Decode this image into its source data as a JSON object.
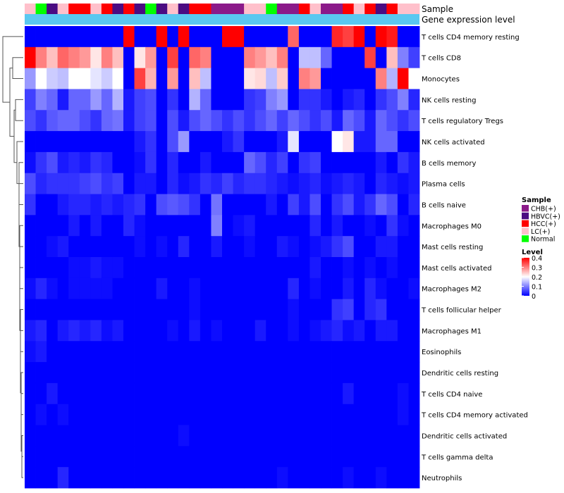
{
  "chart_data": {
    "type": "heatmap",
    "title": "",
    "annotation_tracks": [
      {
        "name": "Sample",
        "label": "Sample"
      },
      {
        "name": "Gene expression level",
        "label": "Gene expression level"
      }
    ],
    "gene_expression_level_color": "#5ac8f0",
    "rows": [
      "T cells CD4 memory resting",
      "T cells CD8",
      "Monocytes",
      "NK cells resting",
      "T cells regulatory  Tregs",
      "NK cells activated",
      "B cells memory",
      "Plasma cells",
      "B cells naive",
      "Macrophages M0",
      "Mast cells resting",
      "Mast cells activated",
      "Macrophages M2",
      "T cells follicular helper",
      "Macrophages M1",
      "Eosinophils",
      "Dendritic cells resting",
      "T cells CD4 naive",
      "T cells CD4 memory activated",
      "Dendritic cells activated",
      "T cells gamma delta",
      "Neutrophils"
    ],
    "sample_groups": [
      "LC",
      "Normal",
      "HBVC",
      "LC",
      "HCC",
      "HCC",
      "LC",
      "HCC",
      "HBVC",
      "HCC",
      "HBVC",
      "Normal",
      "HBVC",
      "LC",
      "HBVC",
      "HCC",
      "HCC",
      "CHB",
      "CHB",
      "CHB",
      "LC",
      "LC",
      "Normal",
      "CHB",
      "CHB",
      "HCC",
      "LC",
      "CHB",
      "CHB",
      "HCC",
      "LC",
      "HCC",
      "HBVC",
      "HCC",
      "LC",
      "LC"
    ],
    "values": [
      [
        0,
        0,
        0,
        0,
        0,
        0,
        0,
        0,
        0,
        0.4,
        0,
        0,
        0.4,
        0,
        0.4,
        0,
        0,
        0,
        0.4,
        0.4,
        0,
        0,
        0,
        0,
        0.32,
        0,
        0,
        0,
        0.37,
        0.35,
        0.4,
        0,
        0.4,
        0.38,
        0,
        0
      ],
      [
        0.4,
        0.3,
        0.25,
        0.32,
        0.3,
        0.28,
        0.22,
        0.3,
        0.25,
        0,
        0.22,
        0.28,
        0,
        0.35,
        0,
        0.32,
        0.3,
        0,
        0,
        0,
        0.3,
        0.28,
        0.25,
        0.3,
        0,
        0.15,
        0.15,
        0.08,
        0,
        0,
        0,
        0.35,
        0,
        0.25,
        0.1,
        0.05
      ],
      [
        0.12,
        0.2,
        0.16,
        0.15,
        0.2,
        0.2,
        0.18,
        0.16,
        0.2,
        0,
        0.35,
        0.26,
        0,
        0.28,
        0,
        0.25,
        0.15,
        0,
        0,
        0,
        0.22,
        0.23,
        0.15,
        0.24,
        0,
        0.3,
        0.28,
        0,
        0,
        0,
        0,
        0,
        0.3,
        0.14,
        0.4,
        0.2
      ],
      [
        0.05,
        0.1,
        0.08,
        0.02,
        0.08,
        0.08,
        0.12,
        0.08,
        0.14,
        0.02,
        0.05,
        0.06,
        0,
        0.04,
        0,
        0.14,
        0.08,
        0,
        0,
        0,
        0.04,
        0.05,
        0.1,
        0.12,
        0,
        0.04,
        0.04,
        0.02,
        0,
        0.02,
        0.03,
        0,
        0.04,
        0.06,
        0.1,
        0.03
      ],
      [
        0.06,
        0.04,
        0.07,
        0.08,
        0.08,
        0.06,
        0.04,
        0.08,
        0.09,
        0.02,
        0.05,
        0.06,
        0,
        0.06,
        0.02,
        0.06,
        0.08,
        0.06,
        0.04,
        0.06,
        0.04,
        0.06,
        0.08,
        0.05,
        0.08,
        0.06,
        0.04,
        0.06,
        0.02,
        0.08,
        0.06,
        0.02,
        0.08,
        0.06,
        0.04,
        0.06
      ],
      [
        0,
        0,
        0,
        0,
        0,
        0,
        0,
        0,
        0,
        0,
        0.02,
        0.04,
        0,
        0.06,
        0.12,
        0,
        0,
        0,
        0.02,
        0.04,
        0,
        0,
        0,
        0.02,
        0.18,
        0,
        0,
        0,
        0.2,
        0.22,
        0.02,
        0.02,
        0.08,
        0.08,
        0,
        0
      ],
      [
        0.01,
        0.04,
        0.06,
        0.02,
        0.03,
        0.02,
        0.04,
        0.03,
        0,
        0,
        0.01,
        0.04,
        0,
        0.03,
        0,
        0,
        0.02,
        0,
        0,
        0,
        0.08,
        0.06,
        0.03,
        0.05,
        0,
        0.04,
        0.05,
        0,
        0,
        0,
        0,
        0,
        0.02,
        0,
        0.04,
        0.02
      ],
      [
        0.06,
        0.03,
        0.04,
        0.04,
        0.04,
        0.05,
        0.06,
        0.04,
        0.05,
        0,
        0.02,
        0.02,
        0,
        0.03,
        0.01,
        0.02,
        0.04,
        0.03,
        0.05,
        0.03,
        0.04,
        0.04,
        0.03,
        0.02,
        0.01,
        0.02,
        0.03,
        0.01,
        0.02,
        0.03,
        0.02,
        0,
        0.03,
        0.02,
        0.01,
        0.02
      ],
      [
        0.04,
        0,
        0,
        0.02,
        0.03,
        0.03,
        0.02,
        0.03,
        0.02,
        0.03,
        0.04,
        0,
        0.06,
        0.07,
        0.06,
        0.04,
        0,
        0.09,
        0,
        0,
        0,
        0,
        0.02,
        0,
        0.05,
        0.02,
        0.06,
        0,
        0.04,
        0.06,
        0.02,
        0.04,
        0.08,
        0.06,
        0,
        0.03
      ],
      [
        0,
        0,
        0,
        0,
        0.02,
        0,
        0.02,
        0,
        0,
        0.03,
        0.01,
        0,
        0,
        0,
        0,
        0,
        0,
        0.1,
        0,
        0.01,
        0.02,
        0,
        0,
        0,
        0,
        0,
        0.03,
        0,
        0.02,
        0,
        0,
        0.01,
        0,
        0.04,
        0.01,
        0
      ],
      [
        0,
        0,
        0.01,
        0.02,
        0,
        0,
        0,
        0,
        0,
        0,
        0.01,
        0,
        0.01,
        0,
        0.03,
        0,
        0,
        0.02,
        0,
        0,
        0.01,
        0,
        0,
        0.02,
        0.01,
        0,
        0.01,
        0.02,
        0.04,
        0.06,
        0,
        0,
        0.02,
        0.02,
        0,
        0
      ],
      [
        0,
        0,
        0,
        0,
        0.01,
        0.01,
        0.02,
        0.01,
        0.01,
        0,
        0,
        0,
        0,
        0,
        0,
        0,
        0,
        0,
        0,
        0,
        0,
        0,
        0,
        0,
        0,
        0,
        0.02,
        0,
        0,
        0.01,
        0,
        0.01,
        0,
        0.01,
        0,
        0
      ],
      [
        0.01,
        0.03,
        0.01,
        0,
        0.01,
        0.01,
        0.01,
        0.01,
        0,
        0,
        0,
        0,
        0.02,
        0,
        0,
        0.01,
        0,
        0,
        0,
        0,
        0,
        0,
        0,
        0,
        0.03,
        0,
        0.01,
        0,
        0,
        0.02,
        0,
        0.03,
        0.01,
        0,
        0,
        0.01
      ],
      [
        0,
        0,
        0,
        0,
        0,
        0,
        0,
        0,
        0,
        0,
        0,
        0,
        0,
        0,
        0,
        0.01,
        0,
        0,
        0,
        0,
        0,
        0,
        0,
        0,
        0.01,
        0,
        0,
        0,
        0.04,
        0.05,
        0,
        0.03,
        0.04,
        0,
        0,
        0
      ],
      [
        0.02,
        0.03,
        0,
        0.02,
        0.03,
        0.02,
        0.03,
        0.01,
        0.02,
        0,
        0,
        0,
        0,
        0.01,
        0,
        0.02,
        0,
        0.01,
        0,
        0,
        0,
        0.02,
        0,
        0,
        0.01,
        0,
        0.01,
        0.02,
        0.03,
        0.01,
        0.02,
        0,
        0.02,
        0.02,
        0,
        0
      ],
      [
        0.01,
        0.02,
        0,
        0,
        0,
        0,
        0,
        0,
        0,
        0,
        0,
        0,
        0,
        0,
        0,
        0,
        0,
        0,
        0,
        0,
        0,
        0,
        0,
        0,
        0,
        0,
        0,
        0,
        0,
        0,
        0,
        0,
        0,
        0,
        0,
        0
      ],
      [
        0,
        0,
        0,
        0,
        0,
        0,
        0,
        0,
        0,
        0,
        0,
        0,
        0,
        0,
        0,
        0,
        0,
        0,
        0,
        0,
        0,
        0,
        0,
        0,
        0,
        0,
        0,
        0,
        0,
        0,
        0,
        0,
        0,
        0,
        0,
        0
      ],
      [
        0,
        0,
        0.02,
        0,
        0,
        0,
        0,
        0,
        0,
        0,
        0,
        0,
        0,
        0,
        0,
        0,
        0,
        0,
        0,
        0,
        0,
        0,
        0,
        0,
        0,
        0,
        0,
        0,
        0,
        0.02,
        0,
        0,
        0,
        0,
        0.01,
        0
      ],
      [
        0,
        0.01,
        0,
        0.01,
        0,
        0,
        0,
        0,
        0,
        0,
        0,
        0,
        0,
        0,
        0,
        0,
        0,
        0,
        0,
        0,
        0,
        0,
        0,
        0,
        0,
        0,
        0,
        0,
        0,
        0,
        0,
        0,
        0,
        0,
        0.01,
        0
      ],
      [
        0,
        0,
        0,
        0,
        0,
        0,
        0,
        0,
        0,
        0,
        0,
        0,
        0,
        0,
        0.01,
        0,
        0,
        0,
        0,
        0,
        0,
        0,
        0,
        0,
        0,
        0,
        0,
        0,
        0,
        0,
        0,
        0,
        0,
        0,
        0,
        0
      ],
      [
        0,
        0,
        0,
        0,
        0,
        0,
        0,
        0,
        0,
        0,
        0,
        0,
        0,
        0,
        0,
        0,
        0,
        0,
        0,
        0,
        0,
        0,
        0,
        0,
        0,
        0,
        0,
        0,
        0,
        0,
        0,
        0,
        0,
        0,
        0,
        0
      ],
      [
        0,
        0,
        0,
        0.03,
        0,
        0,
        0,
        0,
        0,
        0,
        0,
        0,
        0,
        0,
        0,
        0,
        0,
        0,
        0,
        0,
        0,
        0,
        0,
        0.01,
        0,
        0,
        0,
        0,
        0,
        0.01,
        0,
        0,
        0.01,
        0,
        0,
        0
      ]
    ],
    "legend": {
      "sample_title": "Sample",
      "sample_items": [
        {
          "key": "CHB",
          "label": "CHB(+)",
          "color": "#8b1a89"
        },
        {
          "key": "HBVC",
          "label": "HBVC(+)",
          "color": "#4b0c82"
        },
        {
          "key": "HCC",
          "label": "HCC(+)",
          "color": "#ff0000"
        },
        {
          "key": "LC",
          "label": "LC(+)",
          "color": "#ffc0cb"
        },
        {
          "key": "Normal",
          "label": "Normal",
          "color": "#00ff00"
        }
      ],
      "level_title": "Level",
      "level_ticks": [
        0.4,
        0.3,
        0.2,
        0.1,
        0
      ]
    },
    "color_scale": {
      "low": "#0000ff",
      "mid": "#ffffff",
      "high": "#ff0000",
      "min": 0,
      "mid_value": 0.2,
      "max": 0.4
    }
  }
}
